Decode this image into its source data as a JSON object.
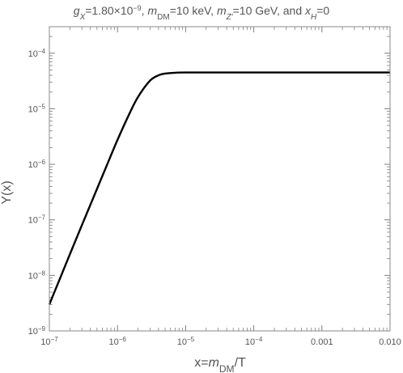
{
  "chart_data": {
    "type": "line",
    "title": {
      "parts": [
        {
          "text": "g",
          "style": "italic"
        },
        {
          "text": "X",
          "style": "sub-italic"
        },
        {
          "text": "=1.80×10",
          "style": "normal"
        },
        {
          "text": "−9",
          "style": "sup"
        },
        {
          "text": ", ",
          "style": "normal"
        },
        {
          "text": "m",
          "style": "italic"
        },
        {
          "text": "DM",
          "style": "sub"
        },
        {
          "text": "=10 keV, ",
          "style": "normal"
        },
        {
          "text": "m",
          "style": "italic"
        },
        {
          "text": "Z′",
          "style": "sub-italic"
        },
        {
          "text": "=10 GeV, and ",
          "style": "normal"
        },
        {
          "text": "x",
          "style": "italic"
        },
        {
          "text": "H",
          "style": "sub-italic"
        },
        {
          "text": "=0",
          "style": "normal"
        }
      ]
    },
    "xlabel": {
      "parts": [
        {
          "text": "x=",
          "style": "normal"
        },
        {
          "text": "m",
          "style": "italic"
        },
        {
          "text": "DM",
          "style": "sub"
        },
        {
          "text": "/T",
          "style": "normal"
        }
      ]
    },
    "ylabel": "Y(x)",
    "xscale": "log",
    "yscale": "log",
    "xlim": [
      1e-07,
      0.01
    ],
    "ylim": [
      1e-09,
      0.0003
    ],
    "x_ticks": [
      {
        "value": 1e-07,
        "base": "10",
        "exp": "−7"
      },
      {
        "value": 1e-06,
        "base": "10",
        "exp": "−6"
      },
      {
        "value": 1e-05,
        "base": "10",
        "exp": "−5"
      },
      {
        "value": 0.0001,
        "base": "10",
        "exp": "−4"
      },
      {
        "value": 0.001,
        "base": "0.001",
        "exp": ""
      },
      {
        "value": 0.01,
        "base": "0.010",
        "exp": ""
      }
    ],
    "y_ticks": [
      {
        "value": 1e-09,
        "base": "10",
        "exp": "−9"
      },
      {
        "value": 1e-08,
        "base": "10",
        "exp": "−8"
      },
      {
        "value": 1e-07,
        "base": "10",
        "exp": "−7"
      },
      {
        "value": 1e-06,
        "base": "10",
        "exp": "−6"
      },
      {
        "value": 1e-05,
        "base": "10",
        "exp": "−5"
      },
      {
        "value": 0.0001,
        "base": "10",
        "exp": "−4"
      }
    ],
    "series": [
      {
        "color": "#000000",
        "points": [
          [
            1e-07,
            3e-09
          ],
          [
            1.5e-07,
            1.01e-08
          ],
          [
            2e-07,
            2.4e-08
          ],
          [
            3e-07,
            8e-08
          ],
          [
            5e-07,
            3.6e-07
          ],
          [
            7e-07,
            9.7e-07
          ],
          [
            1e-06,
            2.75e-06
          ],
          [
            1.5e-06,
            8.2e-06
          ],
          [
            2e-06,
            1.63e-05
          ],
          [
            3e-06,
            3.2e-05
          ],
          [
            4e-06,
            4e-05
          ],
          [
            5e-06,
            4.3e-05
          ],
          [
            7e-06,
            4.45e-05
          ],
          [
            1e-05,
            4.5e-05
          ],
          [
            0.0001,
            4.5e-05
          ],
          [
            0.001,
            4.5e-05
          ],
          [
            0.01,
            4.5e-05
          ]
        ]
      }
    ]
  }
}
